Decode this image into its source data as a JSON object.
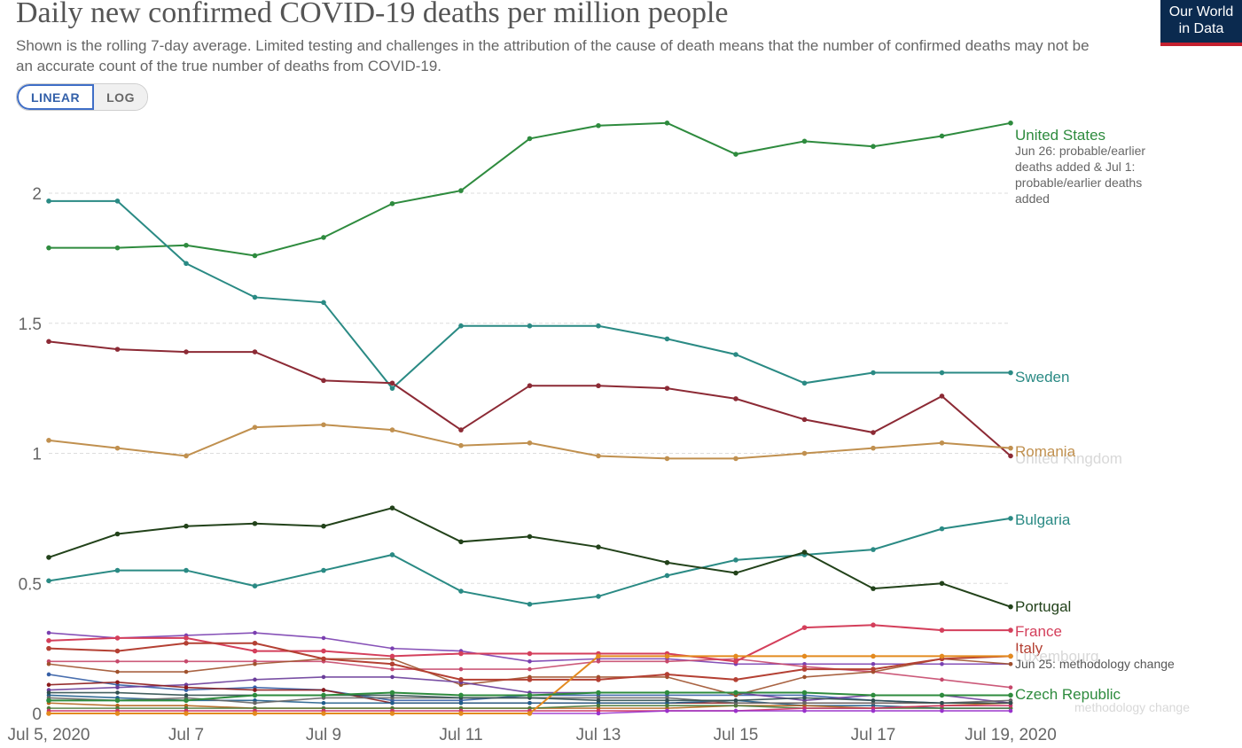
{
  "header": {
    "title": "Daily new confirmed COVID-19 deaths per million people",
    "subtitle": "Shown is the rolling 7-day average. Limited testing and challenges in the attribution of the cause of death means that the number of confirmed deaths may not be an accurate count of the true number of deaths from COVID-19.",
    "logo_line1": "Our World",
    "logo_line2": "in Data"
  },
  "scale_toggle": {
    "linear_label": "LINEAR",
    "log_label": "LOG",
    "selected": "LINEAR"
  },
  "chart_data": {
    "type": "line",
    "title": "Daily new confirmed COVID-19 deaths per million people",
    "x": [
      "2020-07-05",
      "2020-07-06",
      "2020-07-07",
      "2020-07-08",
      "2020-07-09",
      "2020-07-10",
      "2020-07-11",
      "2020-07-12",
      "2020-07-13",
      "2020-07-14",
      "2020-07-15",
      "2020-07-16",
      "2020-07-17",
      "2020-07-18",
      "2020-07-19"
    ],
    "x_ticks": [
      {
        "x": "2020-07-05",
        "label": "Jul 5, 2020"
      },
      {
        "x": "2020-07-07",
        "label": "Jul 7"
      },
      {
        "x": "2020-07-09",
        "label": "Jul 9"
      },
      {
        "x": "2020-07-11",
        "label": "Jul 11"
      },
      {
        "x": "2020-07-13",
        "label": "Jul 13"
      },
      {
        "x": "2020-07-15",
        "label": "Jul 15"
      },
      {
        "x": "2020-07-17",
        "label": "Jul 17"
      },
      {
        "x": "2020-07-19",
        "label": "Jul 19, 2020"
      }
    ],
    "y_ticks": [
      {
        "value": 0,
        "label": "0"
      },
      {
        "value": 0.5,
        "label": "0.5"
      },
      {
        "value": 1,
        "label": "1"
      },
      {
        "value": 1.5,
        "label": "1.5"
      },
      {
        "value": 2,
        "label": "2"
      }
    ],
    "ylim": [
      0,
      2.3
    ],
    "grid": "horizontal dashed",
    "legend": "right, labels at line ends",
    "series": [
      {
        "name": "United States",
        "color": "#2e8b3e",
        "values": [
          1.79,
          1.79,
          1.8,
          1.76,
          1.83,
          1.96,
          2.01,
          2.21,
          2.26,
          2.27,
          2.15,
          2.2,
          2.18,
          2.22,
          2.27
        ],
        "note": "Jun 26: probable/earlier deaths added & Jul 1: probable/earlier deaths added"
      },
      {
        "name": "Sweden",
        "color": "#2a8a84",
        "values": [
          1.97,
          1.97,
          1.73,
          1.6,
          1.58,
          1.25,
          1.49,
          1.49,
          1.49,
          1.44,
          1.38,
          1.27,
          1.31,
          1.31,
          1.31
        ]
      },
      {
        "name": "United Kingdom",
        "color": "#8c2a35",
        "values": [
          1.43,
          1.4,
          1.39,
          1.39,
          1.28,
          1.27,
          1.09,
          1.26,
          1.26,
          1.25,
          1.21,
          1.13,
          1.08,
          1.22,
          0.99
        ]
      },
      {
        "name": "Romania",
        "color": "#c0904f",
        "values": [
          1.05,
          1.02,
          0.99,
          1.1,
          1.11,
          1.09,
          1.03,
          1.04,
          0.99,
          0.98,
          0.98,
          1.0,
          1.02,
          1.04,
          1.02
        ]
      },
      {
        "name": "Bulgaria",
        "color": "#2a8a84",
        "values": [
          0.51,
          0.55,
          0.55,
          0.49,
          0.55,
          0.61,
          0.47,
          0.42,
          0.45,
          0.53,
          0.59,
          0.61,
          0.63,
          0.71,
          0.75
        ]
      },
      {
        "name": "Portugal",
        "color": "#22421a",
        "values": [
          0.6,
          0.69,
          0.72,
          0.73,
          0.72,
          0.79,
          0.66,
          0.68,
          0.64,
          0.58,
          0.54,
          0.62,
          0.48,
          0.5,
          0.41
        ]
      },
      {
        "name": "France",
        "color": "#d43f5b",
        "values": [
          0.28,
          0.29,
          0.29,
          0.24,
          0.24,
          0.22,
          0.23,
          0.23,
          0.23,
          0.23,
          0.2,
          0.33,
          0.34,
          0.32,
          0.32
        ]
      },
      {
        "name": "Italy",
        "color": "#b44033",
        "values": [
          0.25,
          0.24,
          0.27,
          0.27,
          0.21,
          0.19,
          0.13,
          0.13,
          0.13,
          0.15,
          0.13,
          0.17,
          0.17,
          0.21,
          0.22
        ]
      },
      {
        "name": "Luxembourg",
        "color": "#e38a1f",
        "values": [
          0,
          0,
          0,
          0,
          0,
          0,
          0,
          0,
          0.22,
          0.22,
          0.22,
          0.22,
          0.22,
          0.22,
          0.22
        ],
        "note": "Jun 25: methodology change"
      },
      {
        "name": "Czech Republic",
        "color": "#2e8b3e",
        "values": [
          0.05,
          0.05,
          0.05,
          0.07,
          0.07,
          0.08,
          0.07,
          0.07,
          0.08,
          0.08,
          0.08,
          0.08,
          0.07,
          0.07,
          0.07
        ]
      }
    ]
  },
  "other_lines_color": [
    "#7a3fb0",
    "#c6486b",
    "#355fa6",
    "#a0522d",
    "#6a3d9a",
    "#8b1a1a",
    "#1f5d8b",
    "#b5651d",
    "#4d7a3a",
    "#cc3366",
    "#666666",
    "#2f4f4f",
    "#9932cc"
  ]
}
